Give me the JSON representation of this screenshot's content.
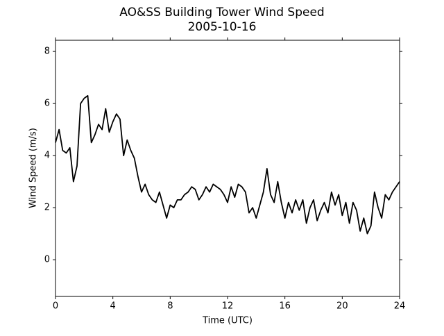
{
  "chart_data": {
    "type": "line",
    "title": "AO&SS Building Tower Wind Speed",
    "subtitle": "2005-10-16",
    "x_label": "Time (UTC)",
    "y_label": "Wind Speed (m/s)",
    "xlim": [
      0,
      24
    ],
    "xticks": [
      0,
      4,
      8,
      12,
      16,
      20,
      24
    ],
    "ylim": [
      -1.41,
      8.43
    ],
    "yticks": [
      0,
      2,
      4,
      6,
      8
    ],
    "color": "#000000",
    "x": [
      0,
      0.25,
      0.5,
      0.75,
      1,
      1.25,
      1.5,
      1.75,
      2,
      2.25,
      2.5,
      2.75,
      3,
      3.25,
      3.5,
      3.75,
      4,
      4.25,
      4.5,
      4.75,
      5,
      5.25,
      5.5,
      5.75,
      6,
      6.25,
      6.5,
      6.75,
      7,
      7.25,
      7.5,
      7.75,
      8,
      8.25,
      8.5,
      8.75,
      9,
      9.25,
      9.5,
      9.75,
      10,
      10.25,
      10.5,
      10.75,
      11,
      11.25,
      11.5,
      11.75,
      12,
      12.25,
      12.5,
      12.75,
      13,
      13.25,
      13.5,
      13.75,
      14,
      14.25,
      14.5,
      14.75,
      15,
      15.25,
      15.5,
      15.75,
      16,
      16.25,
      16.5,
      16.75,
      17,
      17.25,
      17.5,
      17.75,
      18,
      18.25,
      18.5,
      18.75,
      19,
      19.25,
      19.5,
      19.75,
      20,
      20.25,
      20.5,
      20.75,
      21,
      21.25,
      21.5,
      21.75,
      22,
      22.25,
      22.5,
      22.75,
      23,
      23.25,
      23.5,
      23.75,
      24
    ],
    "values": [
      4.5,
      5.0,
      4.2,
      4.1,
      4.3,
      3.0,
      3.6,
      6.0,
      6.2,
      6.3,
      4.5,
      4.8,
      5.2,
      5.0,
      5.8,
      4.9,
      5.3,
      5.6,
      5.4,
      4.0,
      4.6,
      4.2,
      3.9,
      3.2,
      2.6,
      2.9,
      2.5,
      2.3,
      2.2,
      2.6,
      2.1,
      1.6,
      2.1,
      2.0,
      2.3,
      2.3,
      2.5,
      2.6,
      2.8,
      2.7,
      2.3,
      2.5,
      2.8,
      2.6,
      2.9,
      2.8,
      2.7,
      2.5,
      2.2,
      2.8,
      2.4,
      2.9,
      2.8,
      2.6,
      1.8,
      2.0,
      1.6,
      2.1,
      2.6,
      3.5,
      2.5,
      2.2,
      3.0,
      2.2,
      1.6,
      2.2,
      1.8,
      2.3,
      1.9,
      2.3,
      1.4,
      2.0,
      2.3,
      1.5,
      1.9,
      2.2,
      1.8,
      2.6,
      2.1,
      2.5,
      1.7,
      2.2,
      1.4,
      2.2,
      1.9,
      1.1,
      1.6,
      1.0,
      1.3,
      2.6,
      2.0,
      1.6,
      2.5,
      2.3,
      2.6,
      2.8,
      3.0
    ]
  }
}
